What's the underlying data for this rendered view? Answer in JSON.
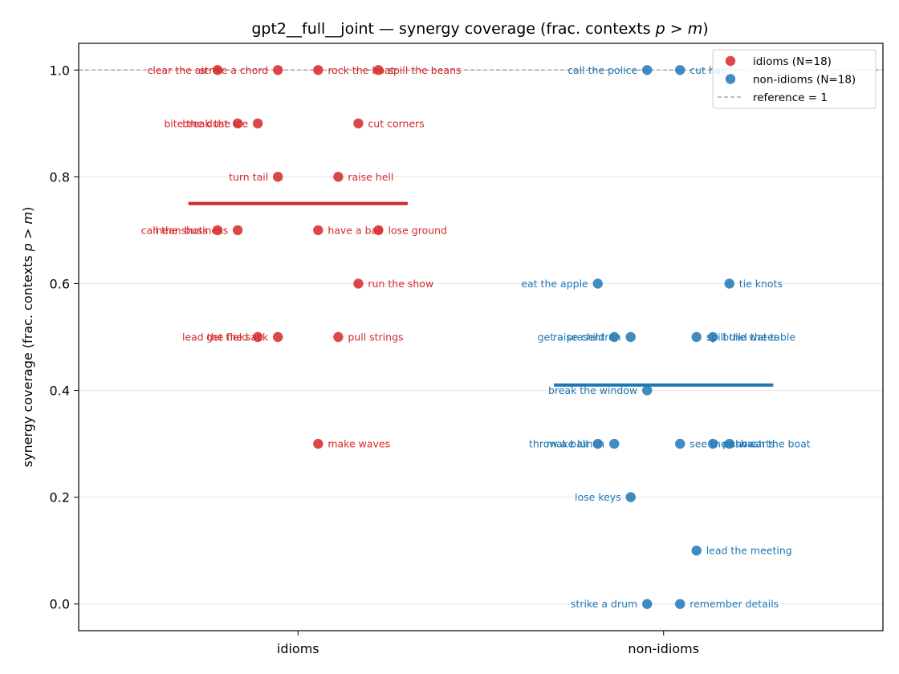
{
  "chart_data": {
    "type": "scatter",
    "title": "gpt2__full__joint — synergy coverage  (frac. contexts p > m)",
    "ylabel": "synergy coverage  (frac. contexts p > m)",
    "xlabel": "",
    "categories": [
      "idioms",
      "non-idioms"
    ],
    "ylim": [
      -0.05,
      1.05
    ],
    "yticks": [
      "0.0",
      "0.2",
      "0.4",
      "0.6",
      "0.8",
      "1.0"
    ],
    "reference_value": 1,
    "grid": "horizontal",
    "legend_position": "top-right",
    "legend": [
      "idioms (N=18)",
      "non-idioms (N=18)",
      "reference = 1"
    ],
    "colors": {
      "idioms": "#d62728",
      "non-idioms": "#1f77b4",
      "reference": "#999999"
    },
    "series": [
      {
        "name": "idioms (N=18)",
        "category": "idioms",
        "mean": 0.75,
        "points": [
          {
            "label": "clear the air",
            "y": 1.0,
            "jitter": -0.22
          },
          {
            "label": "strike a chord",
            "y": 1.0,
            "jitter": -0.055
          },
          {
            "label": "rock the boat",
            "y": 1.0,
            "jitter": 0.055
          },
          {
            "label": "spill the beans",
            "y": 1.0,
            "jitter": 0.22
          },
          {
            "label": "bite the dust",
            "y": 0.9,
            "jitter": -0.165
          },
          {
            "label": "break the ice",
            "y": 0.9,
            "jitter": -0.11
          },
          {
            "label": "cut corners",
            "y": 0.9,
            "jitter": 0.165
          },
          {
            "label": "turn tail",
            "y": 0.8,
            "jitter": -0.055
          },
          {
            "label": "raise hell",
            "y": 0.8,
            "jitter": 0.11
          },
          {
            "label": "call the shots",
            "y": 0.7,
            "jitter": -0.22
          },
          {
            "label": "mean business",
            "y": 0.7,
            "jitter": -0.165
          },
          {
            "label": "have a ball",
            "y": 0.7,
            "jitter": 0.055
          },
          {
            "label": "lose ground",
            "y": 0.7,
            "jitter": 0.22
          },
          {
            "label": "run the show",
            "y": 0.6,
            "jitter": 0.165
          },
          {
            "label": "lead the field",
            "y": 0.5,
            "jitter": -0.11
          },
          {
            "label": "get the sack",
            "y": 0.5,
            "jitter": -0.055
          },
          {
            "label": "pull strings",
            "y": 0.5,
            "jitter": 0.11
          },
          {
            "label": "make waves",
            "y": 0.3,
            "jitter": 0.055
          }
        ]
      },
      {
        "name": "non-idioms (N=18)",
        "category": "non-idioms",
        "mean": 0.41,
        "points": [
          {
            "label": "call the police",
            "y": 1.0,
            "jitter": -0.045
          },
          {
            "label": "cut hair",
            "y": 1.0,
            "jitter": 0.045
          },
          {
            "label": "eat the apple",
            "y": 0.6,
            "jitter": -0.18
          },
          {
            "label": "tie knots",
            "y": 0.6,
            "jitter": 0.18
          },
          {
            "label": "get a present",
            "y": 0.5,
            "jitter": -0.135
          },
          {
            "label": "raise children",
            "y": 0.5,
            "jitter": -0.09
          },
          {
            "label": "spill the water",
            "y": 0.5,
            "jitter": 0.09
          },
          {
            "label": "build the table",
            "y": 0.5,
            "jitter": 0.135
          },
          {
            "label": "break the window",
            "y": 0.4,
            "jitter": -0.045
          },
          {
            "label": "throw a ball",
            "y": 0.3,
            "jitter": -0.18
          },
          {
            "label": "make lunch",
            "y": 0.3,
            "jitter": -0.135
          },
          {
            "label": "see the show",
            "y": 0.3,
            "jitter": 0.045
          },
          {
            "label": "push carts",
            "y": 0.3,
            "jitter": 0.135
          },
          {
            "label": "wash the boat",
            "y": 0.3,
            "jitter": 0.18
          },
          {
            "label": "lose keys",
            "y": 0.2,
            "jitter": -0.09
          },
          {
            "label": "lead the meeting",
            "y": 0.1,
            "jitter": 0.09
          },
          {
            "label": "strike a drum",
            "y": 0.0,
            "jitter": -0.045
          },
          {
            "label": "remember details",
            "y": 0.0,
            "jitter": 0.045
          }
        ]
      }
    ]
  }
}
